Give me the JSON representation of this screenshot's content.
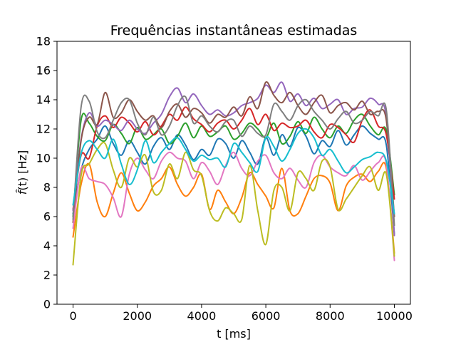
{
  "chart_data": {
    "type": "line",
    "title": "Frequências instantâneas estimadas",
    "xlabel": "t [ms]",
    "ylabel": "f̂(t) [Hz]",
    "ylabel_parts": {
      "fhat": "f̂",
      "t": "(t)",
      "unit": " [Hz]"
    },
    "xlim": [
      -500,
      10500
    ],
    "ylim": [
      0,
      18
    ],
    "xticks": [
      0,
      2000,
      4000,
      6000,
      8000,
      10000
    ],
    "yticks": [
      0,
      2,
      4,
      6,
      8,
      10,
      12,
      14,
      16,
      18
    ],
    "grid": false,
    "legend": "none",
    "x": [
      0,
      250,
      500,
      750,
      1000,
      1250,
      1500,
      1750,
      2000,
      2250,
      2500,
      2750,
      3000,
      3250,
      3500,
      3750,
      4000,
      4250,
      4500,
      4750,
      5000,
      5250,
      5500,
      5750,
      6000,
      6250,
      6500,
      6750,
      7000,
      7250,
      7500,
      7750,
      8000,
      8250,
      8500,
      8750,
      9000,
      9250,
      9500,
      9750,
      10000
    ],
    "series": [
      {
        "color": "#1f77b4",
        "values": [
          6.2,
          9.2,
          10.6,
          11.3,
          12.2,
          11.0,
          10.2,
          11.2,
          10.4,
          9.6,
          10.8,
          11.4,
          10.6,
          11.6,
          10.9,
          9.9,
          10.6,
          10.2,
          11.3,
          11.0,
          10.0,
          11.2,
          10.4,
          9.6,
          11.4,
          10.2,
          11.6,
          10.8,
          12.1,
          11.5,
          10.3,
          11.2,
          10.8,
          11.9,
          10.9,
          11.6,
          12.2,
          11.7,
          11.3,
          10.9,
          4.8
        ]
      },
      {
        "color": "#ff7f0e",
        "values": [
          4.6,
          8.2,
          9.6,
          7.0,
          6.0,
          7.6,
          9.0,
          7.6,
          6.4,
          7.0,
          8.1,
          8.6,
          9.4,
          8.2,
          7.4,
          8.0,
          8.9,
          6.5,
          7.8,
          7.0,
          6.2,
          7.3,
          9.0,
          8.2,
          7.4,
          6.6,
          9.3,
          6.4,
          6.2,
          7.4,
          8.6,
          8.8,
          8.3,
          6.4,
          8.1,
          8.7,
          8.9,
          8.4,
          9.1,
          9.3,
          3.5
        ]
      },
      {
        "color": "#2ca02c",
        "values": [
          6.0,
          12.6,
          12.4,
          11.5,
          11.2,
          12.3,
          11.7,
          11.0,
          12.1,
          11.3,
          11.6,
          12.0,
          11.0,
          11.5,
          12.4,
          11.4,
          12.2,
          11.5,
          11.8,
          12.2,
          11.3,
          11.7,
          12.4,
          12.0,
          11.4,
          12.4,
          11.0,
          11.5,
          12.5,
          11.7,
          12.8,
          12.0,
          11.4,
          12.2,
          11.7,
          12.6,
          13.0,
          12.2,
          11.6,
          11.9,
          7.5
        ]
      },
      {
        "color": "#d62728",
        "values": [
          6.5,
          10.2,
          10.0,
          12.2,
          12.9,
          12.1,
          12.8,
          12.4,
          11.8,
          12.5,
          11.6,
          12.2,
          13.0,
          12.6,
          13.5,
          12.7,
          12.3,
          11.8,
          12.4,
          12.6,
          12.0,
          12.6,
          13.4,
          12.3,
          13.0,
          11.9,
          12.4,
          12.1,
          12.2,
          12.6,
          11.8,
          11.4,
          12.3,
          12.1,
          11.6,
          11.1,
          12.6,
          13.3,
          12.2,
          11.6,
          7.2
        ]
      },
      {
        "color": "#9467bd",
        "values": [
          6.4,
          11.3,
          13.1,
          12.2,
          12.6,
          12.3,
          11.9,
          12.6,
          12.0,
          11.7,
          12.4,
          13.0,
          14.2,
          14.8,
          13.8,
          14.4,
          13.6,
          13.0,
          13.3,
          12.9,
          13.1,
          13.6,
          13.8,
          14.1,
          15.0,
          14.5,
          15.2,
          13.9,
          14.4,
          13.6,
          14.1,
          13.4,
          13.7,
          14.0,
          13.0,
          13.4,
          13.5,
          14.1,
          13.7,
          12.8,
          4.7
        ]
      },
      {
        "color": "#8c564b",
        "values": [
          5.6,
          11.2,
          12.8,
          12.3,
          14.5,
          12.8,
          13.1,
          14.0,
          13.2,
          12.6,
          12.9,
          12.1,
          13.2,
          13.7,
          12.8,
          13.4,
          13.1,
          12.4,
          13.0,
          12.8,
          13.5,
          12.9,
          14.2,
          13.4,
          15.2,
          14.3,
          13.8,
          14.5,
          13.6,
          13.0,
          13.8,
          14.3,
          13.1,
          13.6,
          13.8,
          13.3,
          13.9,
          13.0,
          13.2,
          12.6,
          6.0
        ]
      },
      {
        "color": "#e377c2",
        "values": [
          5.2,
          9.3,
          8.6,
          8.4,
          8.2,
          7.3,
          6.0,
          8.9,
          10.0,
          9.2,
          8.6,
          9.8,
          10.4,
          10.0,
          9.8,
          8.6,
          9.7,
          9.1,
          8.2,
          9.5,
          10.4,
          9.3,
          8.8,
          9.8,
          10.2,
          9.0,
          8.6,
          9.3,
          8.5,
          8.0,
          9.7,
          10.2,
          9.4,
          9.0,
          8.8,
          9.5,
          8.5,
          9.1,
          9.7,
          9.6,
          3.0
        ]
      },
      {
        "color": "#7f7f7f",
        "values": [
          5.8,
          13.5,
          13.9,
          11.8,
          11.4,
          12.6,
          13.8,
          14.0,
          12.4,
          11.6,
          12.8,
          11.6,
          12.2,
          13.6,
          14.2,
          12.4,
          12.9,
          12.2,
          11.8,
          12.5,
          12.6,
          11.5,
          12.2,
          11.7,
          11.6,
          13.7,
          13.2,
          12.6,
          13.6,
          14.0,
          13.2,
          12.6,
          12.0,
          12.7,
          13.2,
          12.4,
          12.6,
          13.2,
          12.9,
          13.3,
          5.4
        ]
      },
      {
        "color": "#bcbd22",
        "values": [
          2.7,
          8.8,
          9.6,
          10.6,
          11.0,
          9.2,
          8.0,
          10.0,
          9.4,
          10.2,
          7.7,
          7.8,
          9.6,
          8.6,
          10.4,
          9.2,
          8.8,
          6.4,
          5.7,
          6.6,
          6.2,
          5.8,
          9.5,
          6.4,
          4.1,
          7.8,
          8.0,
          6.4,
          9.0,
          8.6,
          7.8,
          9.8,
          9.4,
          6.5,
          7.2,
          8.0,
          8.8,
          9.4,
          7.8,
          8.9,
          3.3
        ]
      },
      {
        "color": "#17becf",
        "values": [
          6.8,
          10.3,
          11.2,
          10.6,
          10.0,
          11.3,
          9.6,
          8.2,
          9.2,
          11.2,
          9.7,
          10.4,
          11.0,
          11.4,
          10.6,
          9.8,
          10.2,
          9.9,
          10.0,
          9.4,
          11.0,
          10.4,
          9.7,
          9.1,
          11.4,
          10.8,
          9.8,
          10.6,
          11.7,
          12.0,
          11.4,
          10.2,
          10.6,
          9.8,
          9.0,
          9.4,
          9.9,
          10.1,
          10.4,
          9.8,
          6.2
        ]
      }
    ]
  }
}
